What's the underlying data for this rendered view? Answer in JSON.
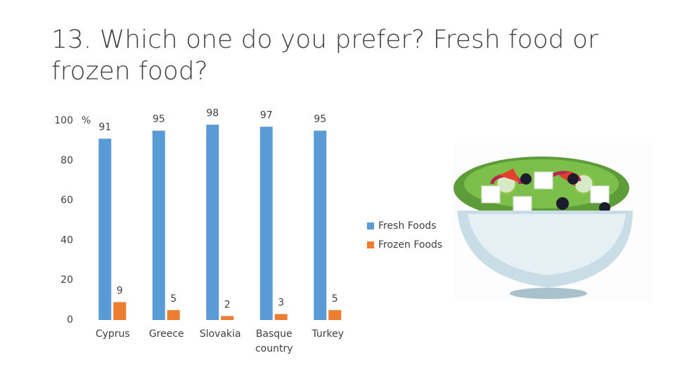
{
  "chart_data": {
    "type": "bar",
    "title": "13. Which one do you prefer? Fresh food or frozen food?",
    "y_label": "%",
    "categories": [
      "Cyprus",
      "Greece",
      "Slovakia",
      "Basque country",
      "Turkey"
    ],
    "series": [
      {
        "name": "Fresh Foods",
        "color": "#5b9bd5",
        "values": [
          91,
          95,
          98,
          97,
          95
        ]
      },
      {
        "name": "Frozen Foods",
        "color": "#ed7d31",
        "values": [
          9,
          5,
          2,
          3,
          5
        ]
      }
    ],
    "ylim": [
      0,
      100
    ],
    "yticks": [
      0,
      20,
      40,
      60,
      80,
      100
    ],
    "grid": false,
    "legend": "right"
  }
}
